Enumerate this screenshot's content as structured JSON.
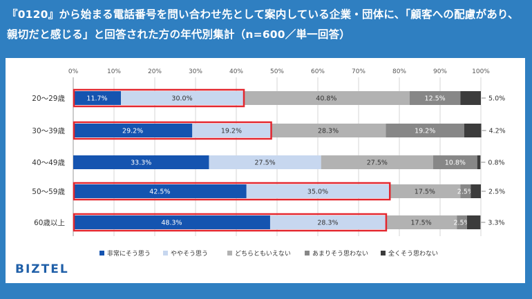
{
  "title_lines": [
    "『0120』から始まる電話番号を問い合わせ先として案内している企業・団体に、「顧客への配慮があり、",
    "親切だと感じる」と回答された方の年代別集計（n=600／単一回答）"
  ],
  "logo": "BIZTEL",
  "colors": {
    "background": "#2f7fc1",
    "series": [
      "#1554b0",
      "#c7d7ef",
      "#b2b2b2",
      "#878787",
      "#3c3c3c"
    ],
    "highlight_box": "#e3262e"
  },
  "chart_data": {
    "type": "bar",
    "orientation": "horizontal",
    "stacked": "percent",
    "categories": [
      "20～29歳",
      "30～39歳",
      "40～49歳",
      "50～59歳",
      "60歳以上"
    ],
    "series": [
      {
        "name": "非常にそう思う",
        "values": [
          11.7,
          29.2,
          33.3,
          42.5,
          48.3
        ]
      },
      {
        "name": "ややそう思う",
        "values": [
          30.0,
          19.2,
          27.5,
          35.0,
          28.3
        ]
      },
      {
        "name": "どちらともいえない",
        "values": [
          40.8,
          28.3,
          27.5,
          17.5,
          17.5
        ]
      },
      {
        "name": "あまりそう思わない",
        "values": [
          12.5,
          19.2,
          10.8,
          2.5,
          2.5
        ]
      },
      {
        "name": "全くそう思わない",
        "values": [
          5.0,
          4.2,
          0.8,
          2.5,
          3.3
        ]
      }
    ],
    "bar_labels": [
      [
        "11.7%",
        "30.0%",
        "40.8%",
        "12.5%",
        "5.0%"
      ],
      [
        "29.2%",
        "19.2%",
        "28.3%",
        "19.2%",
        "4.2%"
      ],
      [
        "33.3%",
        "27.5%",
        "27.5%",
        "10.8%",
        "0.8%"
      ],
      [
        "42.5%",
        "35.0%",
        "17.5%",
        "2.5%",
        "2.5%"
      ],
      [
        "48.3%",
        "28.3%",
        "17.5%",
        "2.5%",
        "3.3%"
      ]
    ],
    "outside_label_series": 4,
    "highlighted_rows": [
      0,
      1,
      3,
      4
    ],
    "highlighted_series": [
      0,
      1
    ],
    "xaxis": {
      "ticks": [
        "0%",
        "10%",
        "20%",
        "30%",
        "40%",
        "50%",
        "60%",
        "70%",
        "80%",
        "90%",
        "100%"
      ],
      "range": [
        0,
        100
      ]
    },
    "grid": true,
    "legend_position": "bottom"
  }
}
